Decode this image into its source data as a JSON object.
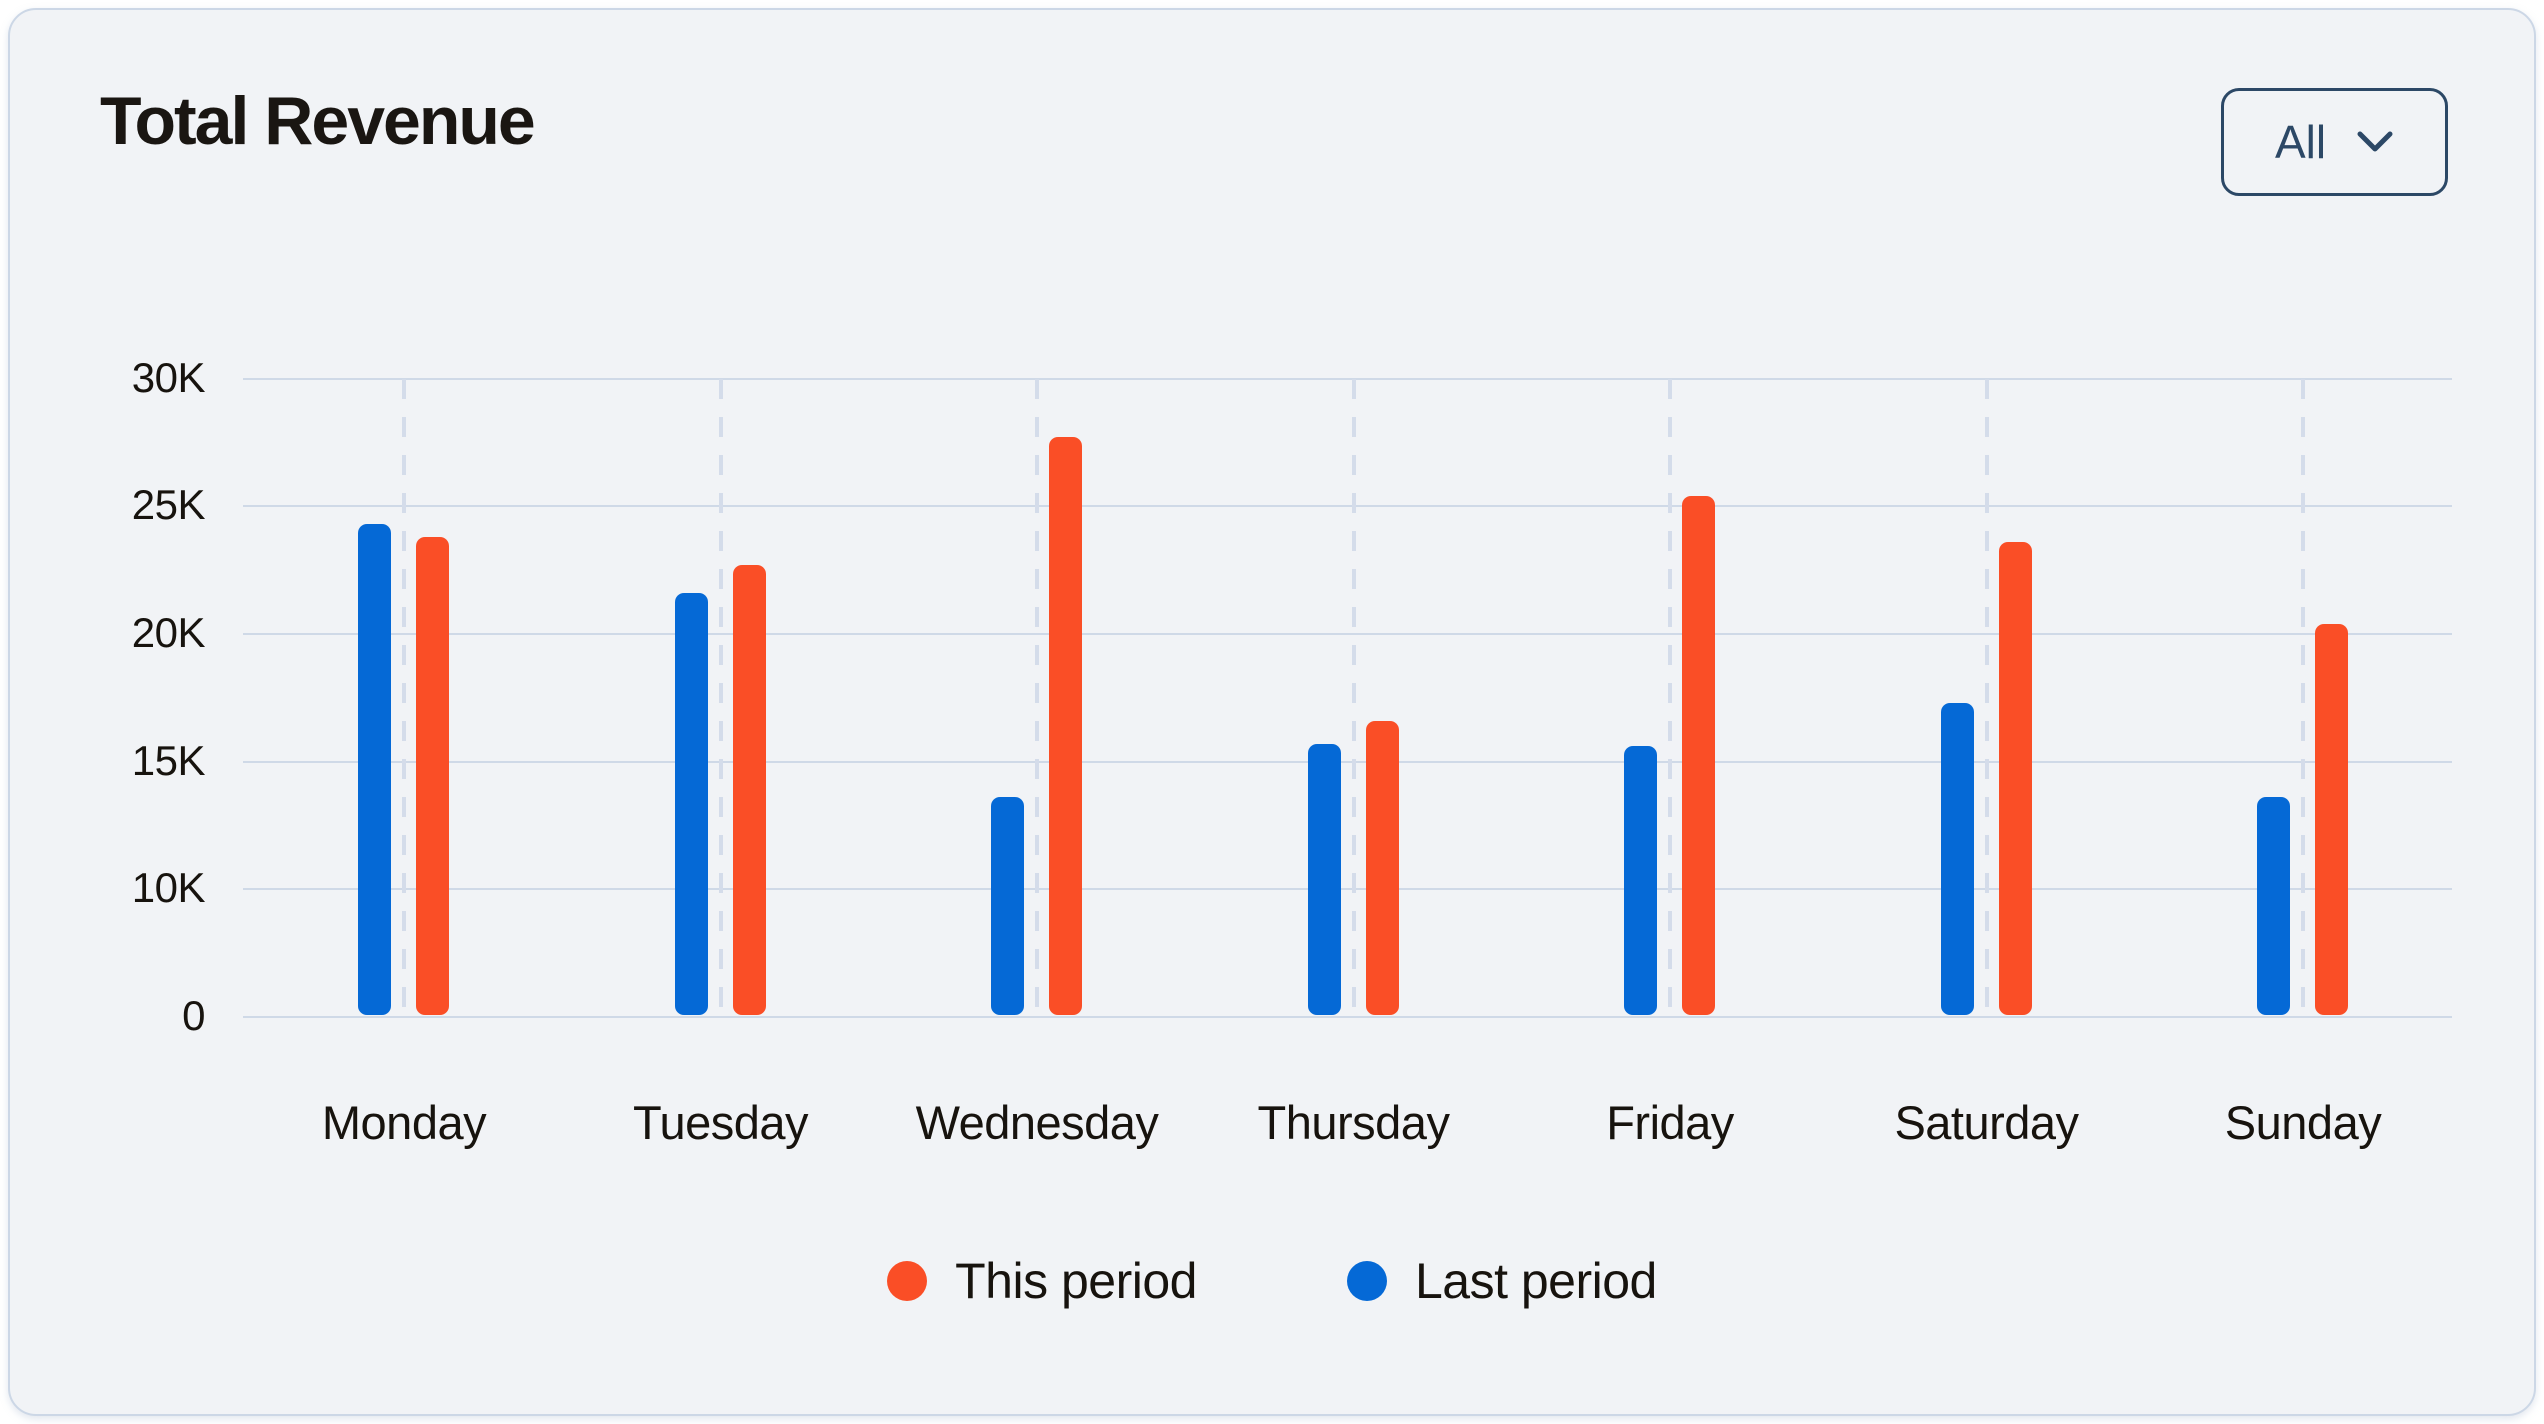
{
  "card": {
    "title": "Total Revenue",
    "filter": {
      "label": "All",
      "icon": "chevron-down"
    }
  },
  "legend": {
    "items": [
      {
        "label": "This period",
        "color": "#fa4e26"
      },
      {
        "label": "Last period",
        "color": "#0569d6"
      }
    ]
  },
  "chart_data": {
    "type": "bar",
    "title": "Total Revenue",
    "categories": [
      "Monday",
      "Tuesday",
      "Wednesday",
      "Thursday",
      "Friday",
      "Saturday",
      "Sunday"
    ],
    "series": [
      {
        "name": "This period",
        "color": "#fa4e26",
        "values": [
          23800,
          22700,
          27700,
          16600,
          25400,
          23600,
          20400
        ]
      },
      {
        "name": "Last period",
        "color": "#0569d6",
        "values": [
          24300,
          21600,
          13600,
          15700,
          15600,
          17300,
          13600
        ]
      }
    ],
    "y_axis": {
      "ticks": [
        "30K",
        "25K",
        "20K",
        "15K",
        "10K",
        "0"
      ],
      "tick_values": [
        30000,
        25000,
        20000,
        15000,
        10000,
        0
      ],
      "evenly_spaced_ticks": true,
      "ylim": [
        0,
        30000
      ]
    },
    "grid": {
      "horizontal_lines": true,
      "vertical_dashed_lines": true
    },
    "legend_position": "bottom",
    "colors": {
      "card_background": "#f1f3f6",
      "card_border": "#ccd7e6",
      "gridline": "#cfd9e7",
      "text": "#17130e",
      "filter_accent": "#2c4866"
    }
  }
}
